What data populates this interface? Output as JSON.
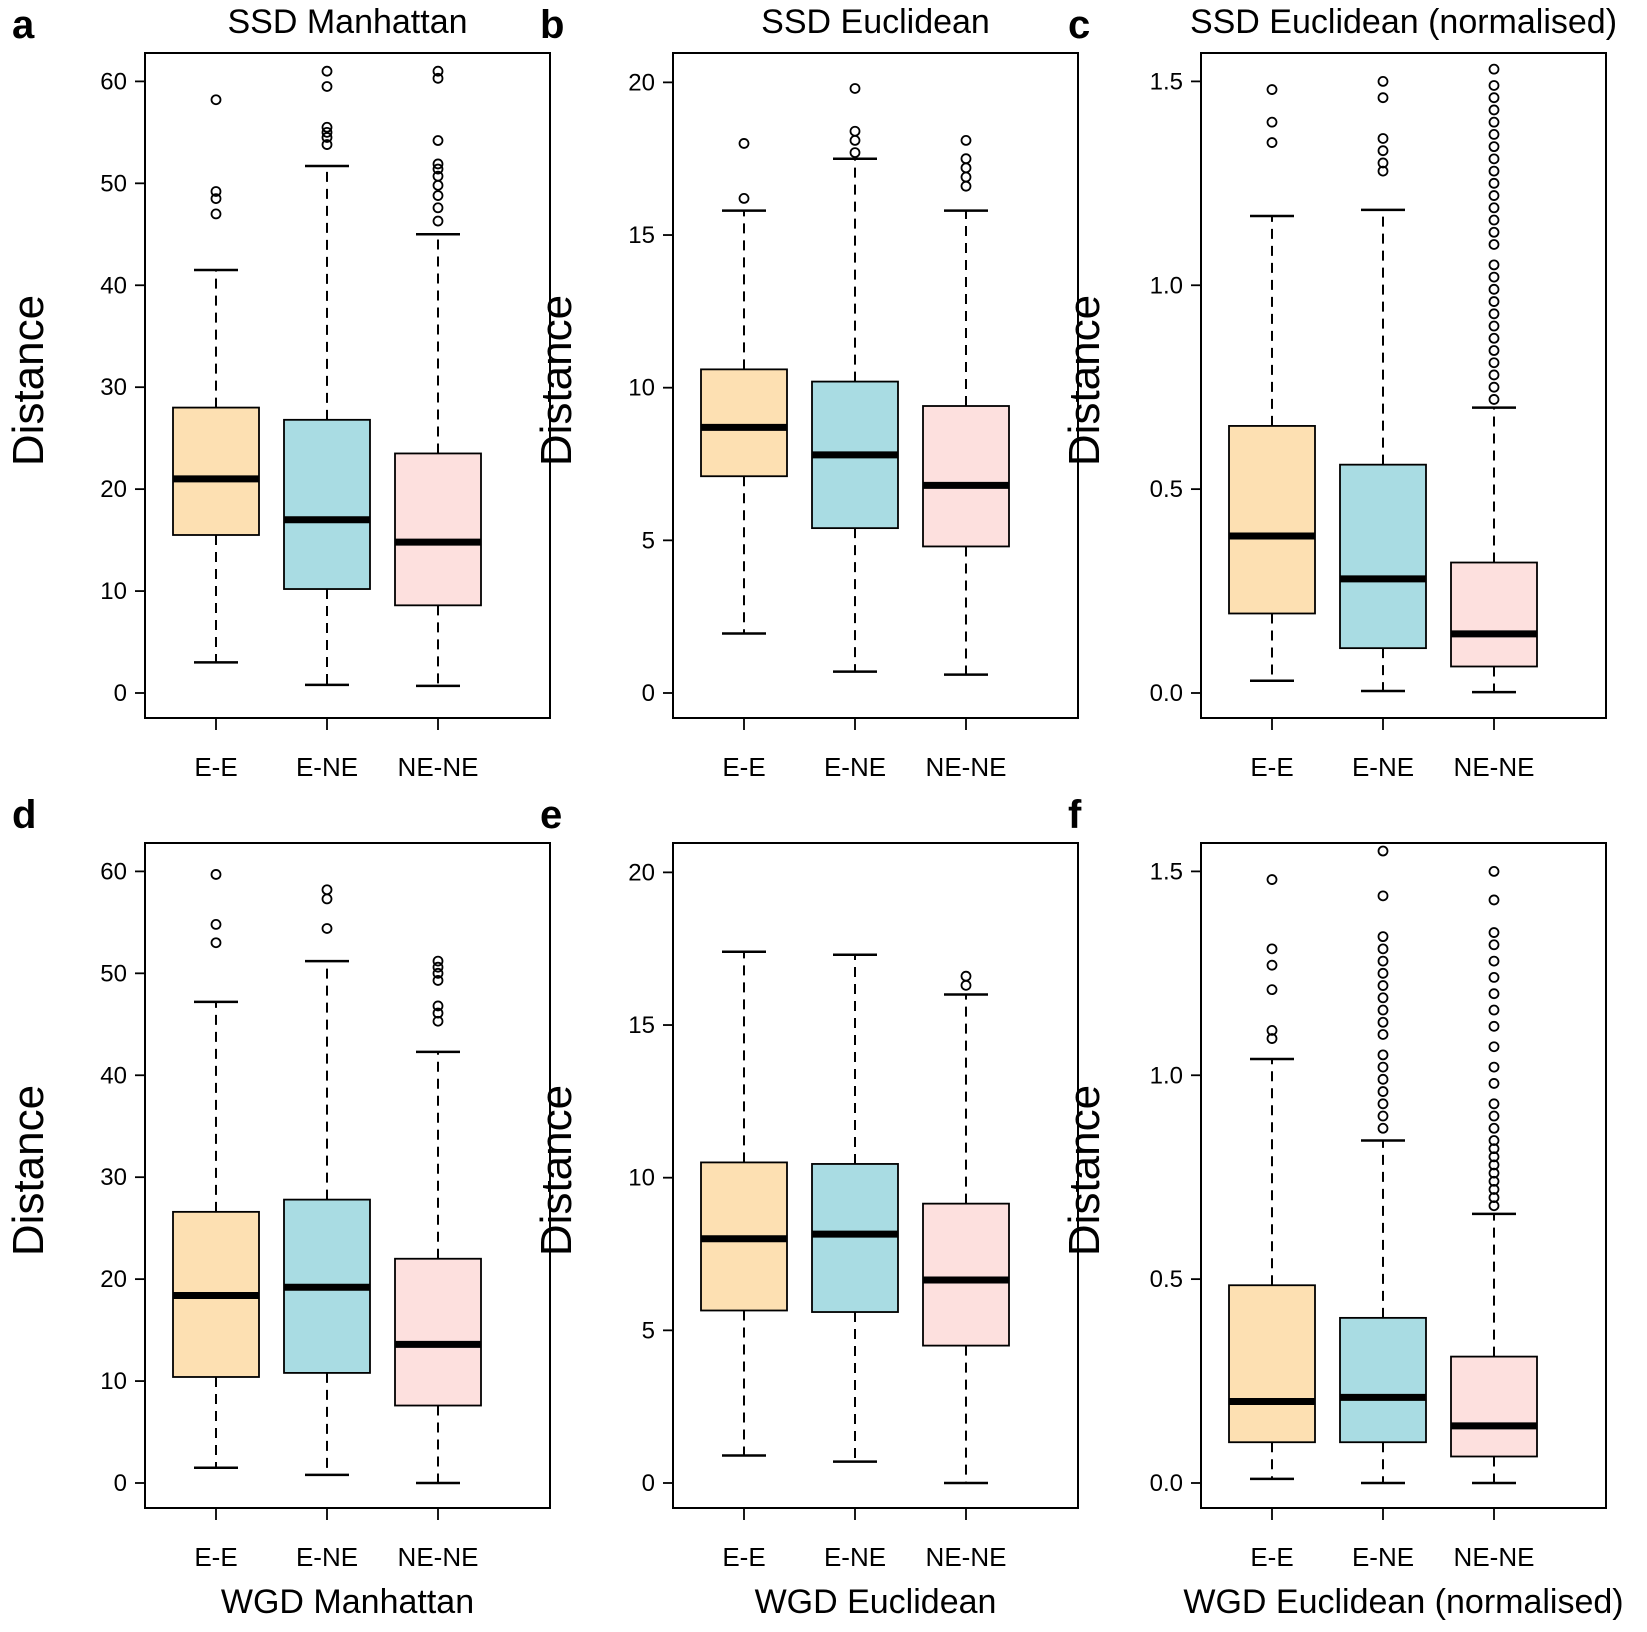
{
  "colors": {
    "E-E": "#fde0b2",
    "E-NE": "#a9dce3",
    "NE-NE": "#fde0de",
    "axis": "#000000"
  },
  "chart_data": [
    {
      "panel": "a",
      "type": "box",
      "title": "SSD Manhattan",
      "title_position": "top",
      "ylabel": "Distance",
      "ylim": [
        0,
        62
      ],
      "yticks": [
        0,
        10,
        20,
        30,
        40,
        50,
        60
      ],
      "ytick_labels": [
        "0",
        "10",
        "20",
        "30",
        "40",
        "50",
        "60"
      ],
      "categories": [
        "E-E",
        "E-NE",
        "NE-NE"
      ],
      "boxes": [
        {
          "category": "E-E",
          "whisker_low": 3,
          "q1": 15.5,
          "median": 21,
          "q3": 28,
          "whisker_high": 41.5,
          "outliers": [
            47,
            48.5,
            49.2,
            58.2
          ]
        },
        {
          "category": "E-NE",
          "whisker_low": 0.8,
          "q1": 10.2,
          "median": 17,
          "q3": 26.8,
          "whisker_high": 51.7,
          "outliers": [
            53.8,
            54.5,
            55,
            55.5,
            59.5,
            61
          ]
        },
        {
          "category": "NE-NE",
          "whisker_low": 0.7,
          "q1": 8.6,
          "median": 14.8,
          "q3": 23.5,
          "whisker_high": 45,
          "outliers": [
            46.3,
            47.6,
            48.8,
            49.8,
            50.7,
            51.4,
            51.9,
            54.2,
            60.3,
            61
          ]
        }
      ]
    },
    {
      "panel": "b",
      "type": "box",
      "title": "SSD Euclidean",
      "title_position": "top",
      "ylabel": "Distance",
      "ylim": [
        0,
        20.7
      ],
      "yticks": [
        0,
        5,
        10,
        15,
        20
      ],
      "ytick_labels": [
        "0",
        "5",
        "10",
        "15",
        "20"
      ],
      "categories": [
        "E-E",
        "E-NE",
        "NE-NE"
      ],
      "boxes": [
        {
          "category": "E-E",
          "whisker_low": 1.95,
          "q1": 7.1,
          "median": 8.7,
          "q3": 10.6,
          "whisker_high": 15.8,
          "outliers": [
            16.2,
            18
          ]
        },
        {
          "category": "E-NE",
          "whisker_low": 0.7,
          "q1": 5.4,
          "median": 7.8,
          "q3": 10.2,
          "whisker_high": 17.5,
          "outliers": [
            17.7,
            18.1,
            18.4,
            19.8
          ]
        },
        {
          "category": "NE-NE",
          "whisker_low": 0.6,
          "q1": 4.8,
          "median": 6.8,
          "q3": 9.4,
          "whisker_high": 15.8,
          "outliers": [
            16.6,
            16.9,
            17.2,
            17.5,
            18.1
          ]
        }
      ]
    },
    {
      "panel": "c",
      "type": "box",
      "title": "SSD Euclidean (normalised)",
      "title_position": "top",
      "ylabel": "Distance",
      "ylim": [
        0,
        1.55
      ],
      "yticks": [
        0,
        0.5,
        1,
        1.5
      ],
      "ytick_labels": [
        "0.0",
        "0.5",
        "1.0",
        "1.5"
      ],
      "categories": [
        "E-E",
        "E-NE",
        "NE-NE"
      ],
      "boxes": [
        {
          "category": "E-E",
          "whisker_low": 0.03,
          "q1": 0.195,
          "median": 0.385,
          "q3": 0.655,
          "whisker_high": 1.17,
          "outliers": [
            1.35,
            1.4,
            1.48
          ]
        },
        {
          "category": "E-NE",
          "whisker_low": 0.005,
          "q1": 0.11,
          "median": 0.28,
          "q3": 0.56,
          "whisker_high": 1.185,
          "outliers": [
            1.28,
            1.3,
            1.33,
            1.36,
            1.46,
            1.5
          ]
        },
        {
          "category": "NE-NE",
          "whisker_low": 0.002,
          "q1": 0.065,
          "median": 0.145,
          "q3": 0.32,
          "whisker_high": 0.7,
          "outliers": [
            0.72,
            0.75,
            0.78,
            0.81,
            0.84,
            0.87,
            0.9,
            0.93,
            0.96,
            0.99,
            1.02,
            1.05,
            1.1,
            1.13,
            1.16,
            1.19,
            1.22,
            1.25,
            1.28,
            1.31,
            1.34,
            1.37,
            1.4,
            1.43,
            1.46,
            1.49,
            1.53
          ]
        }
      ]
    },
    {
      "panel": "d",
      "type": "box",
      "title": "WGD Manhattan",
      "title_position": "bottom",
      "ylabel": "Distance",
      "ylim": [
        0,
        62
      ],
      "yticks": [
        0,
        10,
        20,
        30,
        40,
        50,
        60
      ],
      "ytick_labels": [
        "0",
        "10",
        "20",
        "30",
        "40",
        "50",
        "60"
      ],
      "categories": [
        "E-E",
        "E-NE",
        "NE-NE"
      ],
      "boxes": [
        {
          "category": "E-E",
          "whisker_low": 1.5,
          "q1": 10.4,
          "median": 18.4,
          "q3": 26.6,
          "whisker_high": 47.2,
          "outliers": [
            53,
            54.8,
            59.7
          ]
        },
        {
          "category": "E-NE",
          "whisker_low": 0.8,
          "q1": 10.8,
          "median": 19.2,
          "q3": 27.8,
          "whisker_high": 51.2,
          "outliers": [
            54.4,
            57.3,
            58.2
          ]
        },
        {
          "category": "NE-NE",
          "whisker_low": 0,
          "q1": 7.6,
          "median": 13.6,
          "q3": 22,
          "whisker_high": 42.3,
          "outliers": [
            45.3,
            46.1,
            46.8,
            49.3,
            50,
            50.6,
            51.2
          ]
        }
      ]
    },
    {
      "panel": "e",
      "type": "box",
      "title": "WGD Euclidean",
      "title_position": "bottom",
      "ylabel": "Distance",
      "ylim": [
        0,
        20.7
      ],
      "yticks": [
        0,
        5,
        10,
        15,
        20
      ],
      "ytick_labels": [
        "0",
        "5",
        "10",
        "15",
        "20"
      ],
      "categories": [
        "E-E",
        "E-NE",
        "NE-NE"
      ],
      "boxes": [
        {
          "category": "E-E",
          "whisker_low": 0.9,
          "q1": 5.65,
          "median": 8,
          "q3": 10.5,
          "whisker_high": 17.4,
          "outliers": []
        },
        {
          "category": "E-NE",
          "whisker_low": 0.7,
          "q1": 5.6,
          "median": 8.15,
          "q3": 10.45,
          "whisker_high": 17.3,
          "outliers": []
        },
        {
          "category": "NE-NE",
          "whisker_low": 0,
          "q1": 4.5,
          "median": 6.65,
          "q3": 9.15,
          "whisker_high": 16,
          "outliers": [
            16.3,
            16.6
          ]
        }
      ]
    },
    {
      "panel": "f",
      "type": "box",
      "title": "WGD Euclidean (normalised)",
      "title_position": "bottom",
      "ylabel": "Distance",
      "ylim": [
        0,
        1.55
      ],
      "yticks": [
        0,
        0.5,
        1,
        1.5
      ],
      "ytick_labels": [
        "0.0",
        "0.5",
        "1.0",
        "1.5"
      ],
      "categories": [
        "E-E",
        "E-NE",
        "NE-NE"
      ],
      "boxes": [
        {
          "category": "E-E",
          "whisker_low": 0.01,
          "q1": 0.1,
          "median": 0.2,
          "q3": 0.485,
          "whisker_high": 1.04,
          "outliers": [
            1.09,
            1.11,
            1.21,
            1.27,
            1.31,
            1.48
          ]
        },
        {
          "category": "E-NE",
          "whisker_low": 0,
          "q1": 0.1,
          "median": 0.21,
          "q3": 0.405,
          "whisker_high": 0.84,
          "outliers": [
            0.87,
            0.9,
            0.93,
            0.96,
            0.99,
            1.02,
            1.05,
            1.1,
            1.13,
            1.16,
            1.19,
            1.22,
            1.25,
            1.28,
            1.31,
            1.34,
            1.44,
            1.55
          ]
        },
        {
          "category": "NE-NE",
          "whisker_low": 0,
          "q1": 0.065,
          "median": 0.14,
          "q3": 0.31,
          "whisker_high": 0.66,
          "outliers": [
            0.68,
            0.7,
            0.72,
            0.74,
            0.76,
            0.78,
            0.8,
            0.82,
            0.84,
            0.87,
            0.9,
            0.93,
            0.98,
            1.02,
            1.07,
            1.12,
            1.16,
            1.2,
            1.24,
            1.28,
            1.32,
            1.35,
            1.43,
            1.5
          ]
        }
      ]
    }
  ]
}
